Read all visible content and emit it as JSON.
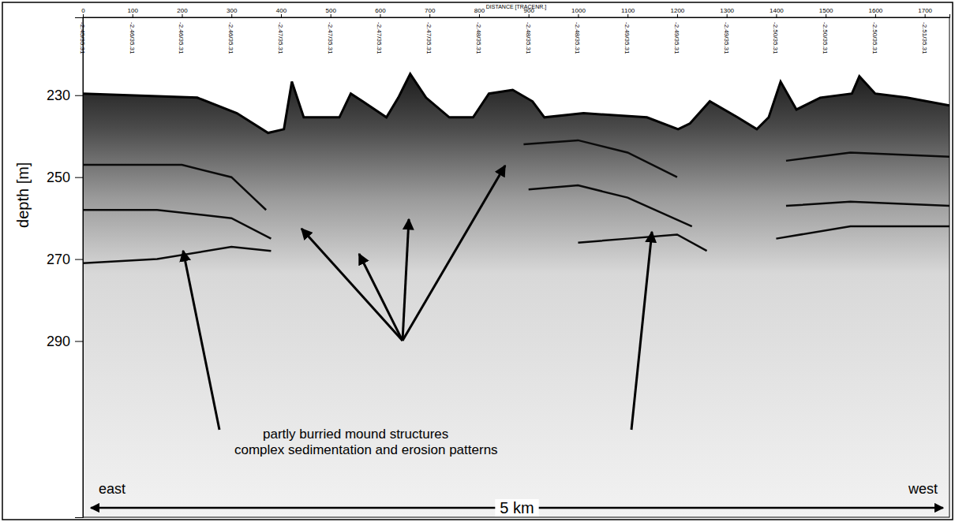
{
  "chart_data": {
    "type": "seismic_section",
    "xlabel": "DISTANCE [TRACENR.]",
    "ylabel": "depth [m]",
    "xlim": [
      0,
      1750
    ],
    "xticks": [
      0,
      100,
      200,
      300,
      400,
      500,
      600,
      700,
      800,
      900,
      1000,
      1100,
      1200,
      1300,
      1400,
      1500,
      1600,
      1700
    ],
    "ylim": [
      211,
      333
    ],
    "yticks": [
      230,
      250,
      270,
      290
    ],
    "position_labels": [
      "-2.45/35.31",
      "-2.46/35.31",
      "-2.46/35.31",
      "-2.46/35.31",
      "-2.47/35.31",
      "-2.47/35.31",
      "-2.47/35.31",
      "-2.47/35.31",
      "-2.48/35.31",
      "-2.48/35.31",
      "-2.48/35.31",
      "-2.49/35.31",
      "-2.49/35.31",
      "-2.49/35.31",
      "-2.50/35.31",
      "-2.50/35.31",
      "-2.50/35.31",
      "-2.51/35.31"
    ],
    "seafloor": {
      "x": [
        0,
        231,
        311,
        374,
        406,
        422,
        446,
        518,
        541,
        565,
        613,
        637,
        661,
        693,
        740,
        788,
        820,
        868,
        908,
        932,
        1011,
        1139,
        1202,
        1226,
        1266,
        1322,
        1361,
        1385,
        1409,
        1441,
        1489,
        1553,
        1568,
        1600,
        1664,
        1750
      ],
      "y": [
        229.6,
        230.6,
        234.4,
        239.2,
        238.3,
        226.7,
        235.4,
        235.4,
        229.6,
        231.5,
        235.4,
        230.6,
        224.8,
        230.6,
        235.4,
        235.4,
        229.6,
        228.7,
        231.5,
        235.4,
        234.4,
        235.4,
        238.3,
        236.9,
        231.5,
        235.4,
        238.3,
        235.4,
        226.7,
        233.5,
        230.6,
        229.6,
        225.4,
        229.6,
        230.6,
        232.5
      ]
    },
    "reflectors": [
      {
        "x": [
          0,
          200,
          300,
          370,
          null,
          890,
          1000,
          1100,
          1200,
          null,
          1420,
          1550,
          1750
        ],
        "y": [
          247,
          247,
          250,
          258,
          null,
          242,
          241,
          244,
          250,
          null,
          246,
          244,
          245
        ]
      },
      {
        "x": [
          0,
          150,
          300,
          380,
          null,
          900,
          1000,
          1100,
          1230,
          null,
          1420,
          1550,
          1750
        ],
        "y": [
          258,
          258,
          260,
          265,
          null,
          253,
          252,
          255,
          262,
          null,
          257,
          256,
          257
        ]
      },
      {
        "x": [
          0,
          150,
          300,
          380,
          null,
          1000,
          1100,
          1200,
          1260,
          null,
          1400,
          1550,
          1750
        ],
        "y": [
          271,
          270,
          267,
          268,
          null,
          266,
          265,
          264,
          268,
          null,
          265,
          262,
          262
        ]
      }
    ],
    "annotations": [
      "partly burried mound structures",
      "complex sedimentation and erosion patterns"
    ],
    "direction_labels": {
      "left": "east",
      "right": "west"
    },
    "scale_bar": "5 km"
  }
}
